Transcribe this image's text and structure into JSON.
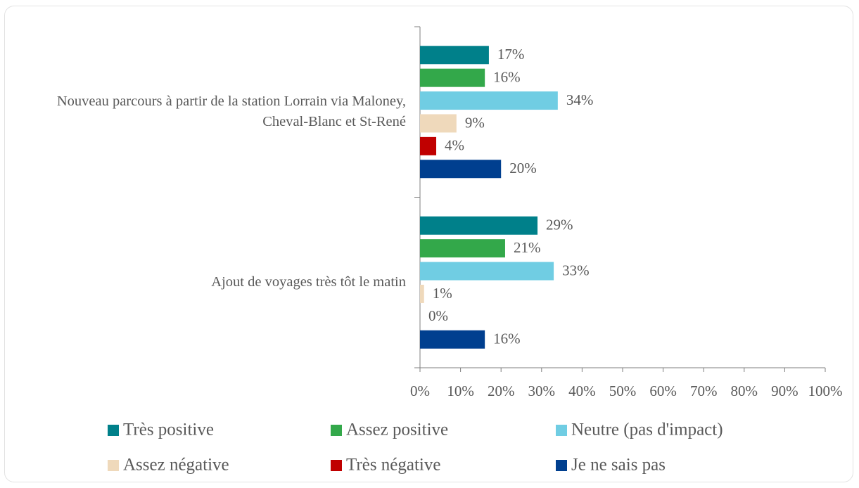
{
  "chart_data": {
    "type": "bar",
    "orientation": "horizontal",
    "categories": [
      "Nouveau parcours à partir de la station Lorrain via Maloney, Cheval-Blanc et St-René",
      "Ajout de voyages très tôt le matin"
    ],
    "series": [
      {
        "name": "Très positive",
        "color": "#00808a",
        "values": [
          17,
          29
        ],
        "value_labels": [
          "17%",
          "29%"
        ]
      },
      {
        "name": "Assez positive",
        "color": "#33a84a",
        "values": [
          16,
          21
        ],
        "value_labels": [
          "16%",
          "21%"
        ]
      },
      {
        "name": "Neutre (pas d'impact)",
        "color": "#70cde3",
        "values": [
          34,
          33
        ],
        "value_labels": [
          "34%",
          "33%"
        ]
      },
      {
        "name": "Assez négative",
        "color": "#efd9bb",
        "values": [
          9,
          1
        ],
        "value_labels": [
          "9%",
          "1%"
        ]
      },
      {
        "name": "Très négative",
        "color": "#c00000",
        "values": [
          4,
          0
        ],
        "value_labels": [
          "4%",
          "0%"
        ]
      },
      {
        "name": "Je ne sais pas",
        "color": "#003f8f",
        "values": [
          20,
          16
        ],
        "value_labels": [
          "20%",
          "16%"
        ]
      }
    ],
    "xlim": [
      0,
      100
    ],
    "xticks": [
      {
        "value": 0,
        "label": "0%"
      },
      {
        "value": 10,
        "label": "10%"
      },
      {
        "value": 20,
        "label": "20%"
      },
      {
        "value": 30,
        "label": "30%"
      },
      {
        "value": 40,
        "label": "40%"
      },
      {
        "value": 50,
        "label": "50%"
      },
      {
        "value": 60,
        "label": "60%"
      },
      {
        "value": 70,
        "label": "70%"
      },
      {
        "value": 80,
        "label": "80%"
      },
      {
        "value": 90,
        "label": "90%"
      },
      {
        "value": 100,
        "label": "100%"
      }
    ],
    "legend": "bottom"
  }
}
